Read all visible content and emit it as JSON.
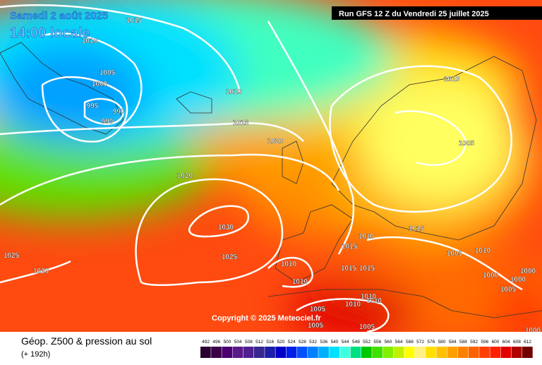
{
  "header": {
    "date": "Samedi 2 août 2025",
    "time": "14:00 locale",
    "run": "Run GFS 12 Z du Vendredi 25 juillet 2025"
  },
  "copyright": "Copyright © 2025 Meteociel.fr",
  "footer": {
    "title": "Géop. Z500 & pression au sol",
    "lead": "(+ 192h)"
  },
  "isobars": [
    1015,
    1010,
    1005,
    1000,
    995,
    990,
    990,
    1010,
    1015,
    1020,
    1020,
    1030,
    1025,
    1025,
    1020,
    1010,
    1005,
    1015,
    1010,
    1015,
    1010,
    1015,
    1015,
    1005,
    1010,
    1010,
    1000,
    1000,
    1000,
    1005,
    1010,
    1010,
    1010,
    1005,
    1005,
    1005,
    1000
  ],
  "scale": [
    {
      "value": 492,
      "color": "#2a0030"
    },
    {
      "value": 496,
      "color": "#3b0048"
    },
    {
      "value": 500,
      "color": "#4b0070"
    },
    {
      "value": 504,
      "color": "#5a1a8a"
    },
    {
      "value": 508,
      "color": "#502090"
    },
    {
      "value": 512,
      "color": "#382890"
    },
    {
      "value": 516,
      "color": "#1e1ea8"
    },
    {
      "value": 520,
      "color": "#0000c8"
    },
    {
      "value": 524,
      "color": "#0020e8"
    },
    {
      "value": 528,
      "color": "#0050ff"
    },
    {
      "value": 532,
      "color": "#0080ff"
    },
    {
      "value": 536,
      "color": "#00b0ff"
    },
    {
      "value": 540,
      "color": "#00e0ff"
    },
    {
      "value": 544,
      "color": "#40ffe0"
    },
    {
      "value": 548,
      "color": "#00e080"
    },
    {
      "value": 552,
      "color": "#00c800"
    },
    {
      "value": 556,
      "color": "#40e000"
    },
    {
      "value": 560,
      "color": "#80f000"
    },
    {
      "value": 564,
      "color": "#c0f000"
    },
    {
      "value": 568,
      "color": "#ffff00"
    },
    {
      "value": 572,
      "color": "#fff080"
    },
    {
      "value": 576,
      "color": "#ffe000"
    },
    {
      "value": 580,
      "color": "#ffc000"
    },
    {
      "value": 584,
      "color": "#ffa000"
    },
    {
      "value": 588,
      "color": "#ff8000"
    },
    {
      "value": 592,
      "color": "#ff6000"
    },
    {
      "value": 596,
      "color": "#ff4000"
    },
    {
      "value": 600,
      "color": "#ff2000"
    },
    {
      "value": 604,
      "color": "#e00000"
    },
    {
      "value": 608,
      "color": "#b00000"
    },
    {
      "value": 612,
      "color": "#700000"
    }
  ]
}
